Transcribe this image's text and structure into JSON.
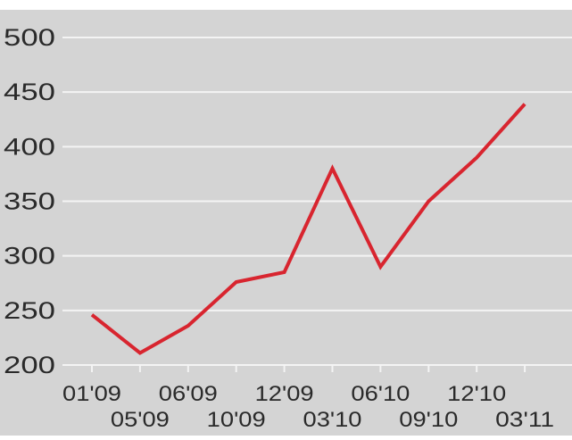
{
  "colors": {
    "plot_background": "#d4d4d4",
    "gridline": "#f4f4f4",
    "line": "#d8252f",
    "text": "#2a2a2a"
  },
  "chart_data": {
    "type": "line",
    "title": "",
    "xlabel": "",
    "ylabel": "",
    "grid": true,
    "legend": "none",
    "ylim": [
      200,
      500
    ],
    "yticks": [
      200,
      250,
      300,
      350,
      400,
      450,
      500
    ],
    "categories": [
      "01'09",
      "05'09",
      "06'09",
      "10'09",
      "12'09",
      "03'10",
      "06'10",
      "09'10",
      "12'10",
      "03'11"
    ],
    "series": [
      {
        "values": [
          246,
          211,
          236,
          276,
          285,
          380,
          290,
          350,
          390,
          439
        ]
      }
    ]
  }
}
